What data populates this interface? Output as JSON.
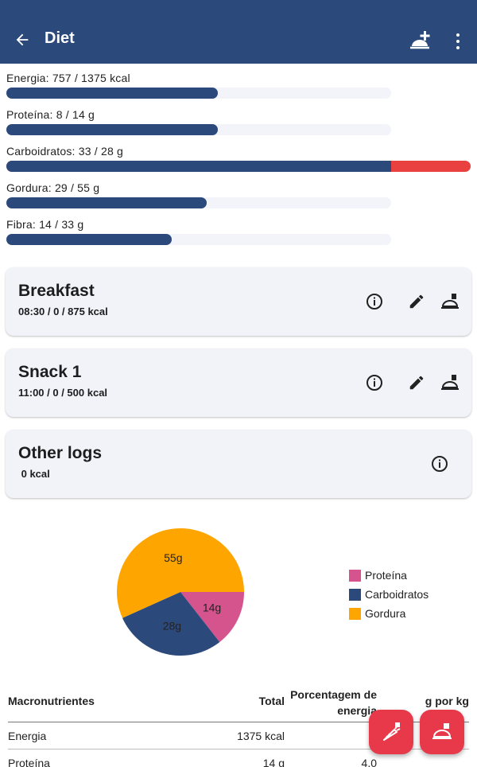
{
  "app_bar": {
    "title": "Diet",
    "icons": {
      "back": "arrow-left-icon",
      "add_plan": "add-meal-plan-icon",
      "menu": "more-vertical-icon"
    }
  },
  "goals": [
    {
      "label": "Energia: 757 / 1375 kcal",
      "progress": 0.55,
      "overflow": 0
    },
    {
      "label": "Proteína: 8 / 14 g",
      "progress": 0.55,
      "overflow": 0
    },
    {
      "label": "Carboidratos: 33 / 28 g",
      "progress": 1.0,
      "overflow": 0.18
    },
    {
      "label": "Gordura: 29 / 55 g",
      "progress": 0.52,
      "overflow": 0
    },
    {
      "label": "Fibra: 14 / 33 g",
      "progress": 0.43,
      "overflow": 0
    }
  ],
  "meals": [
    {
      "title": "Breakfast",
      "subtitle": "08:30 /  0 / 875 kcal"
    },
    {
      "title": "Snack 1",
      "subtitle": "11:00 /  0 / 500 kcal"
    }
  ],
  "other_logs": {
    "title": "Other logs",
    "subtitle": " 0 kcal"
  },
  "chart_data": {
    "type": "pie",
    "slices": [
      {
        "name": "Proteína",
        "value": 14,
        "label": "14g",
        "color": "#d5548e"
      },
      {
        "name": "Carboidratos",
        "value": 28,
        "label": "28g",
        "color": "#2b4a7b"
      },
      {
        "name": "Gordura",
        "value": 55,
        "label": "55g",
        "color": "#ffa500"
      }
    ],
    "legend_position": "right"
  },
  "table": {
    "headers": [
      "Macronutrientes",
      "Total",
      "Porcentagem de energia",
      "g por kg"
    ],
    "rows": [
      [
        "Energia",
        "1375 kcal",
        "",
        ""
      ],
      [
        "Proteína",
        "14 g",
        "4.0",
        ""
      ]
    ]
  },
  "colors": {
    "primary": "#2b4a7b",
    "over_limit": "#e8413f",
    "fab": "#e8394b"
  }
}
